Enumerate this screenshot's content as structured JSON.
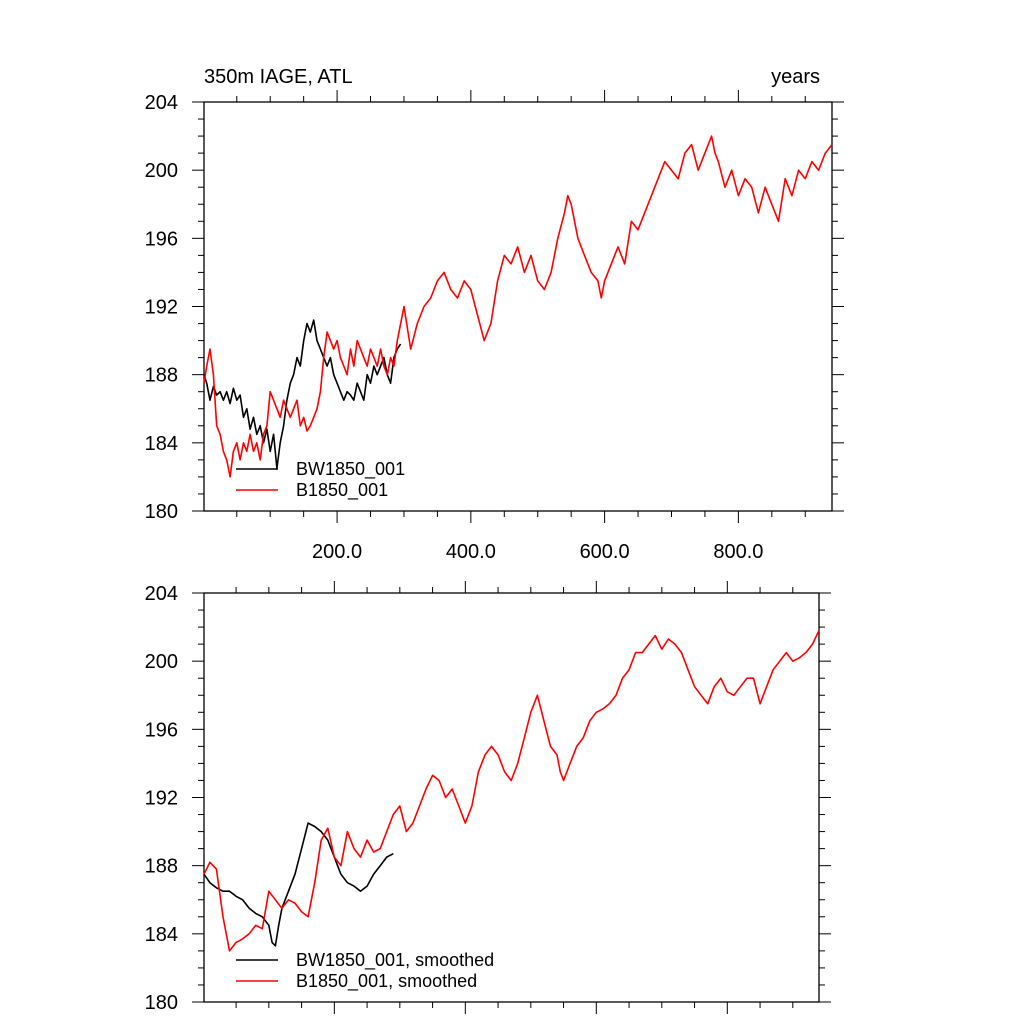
{
  "chart_data": [
    {
      "type": "line",
      "title_left": "350m IAGE, ATL",
      "title_right": "years",
      "xlim": [
        1,
        940
      ],
      "ylim": [
        180,
        204
      ],
      "y_ticks": [
        "180",
        "184",
        "188",
        "192",
        "196",
        "200",
        "204"
      ],
      "x_tick_values": [
        200,
        400,
        600,
        800
      ],
      "x_tick_labels": [
        "200.0",
        "400.0",
        "600.0",
        "800.0"
      ],
      "series": [
        {
          "name": "BW1850_001",
          "color": "#000000",
          "x": [
            1,
            5,
            10,
            15,
            20,
            25,
            30,
            35,
            40,
            45,
            50,
            55,
            60,
            65,
            70,
            75,
            80,
            85,
            90,
            95,
            100,
            105,
            110,
            115,
            120,
            125,
            130,
            135,
            140,
            145,
            150,
            155,
            160,
            165,
            170,
            175,
            180,
            185,
            190,
            195,
            200,
            205,
            210,
            215,
            220,
            225,
            230,
            235,
            240,
            245,
            250,
            255,
            260,
            265,
            270,
            275,
            280,
            285,
            290,
            295
          ],
          "y": [
            188.0,
            187.5,
            186.5,
            187.3,
            186.8,
            187.0,
            186.5,
            187.0,
            186.3,
            187.2,
            186.5,
            186.8,
            185.5,
            186.0,
            184.8,
            185.5,
            184.5,
            185.0,
            184.0,
            184.8,
            183.5,
            184.5,
            182.5,
            184.0,
            185.0,
            186.5,
            187.5,
            188.0,
            189.0,
            188.5,
            190.0,
            191.0,
            190.5,
            191.2,
            190.0,
            189.5,
            189.0,
            188.5,
            189.0,
            188.0,
            187.5,
            187.0,
            186.5,
            187.0,
            186.8,
            186.5,
            187.5,
            187.0,
            186.5,
            188.0,
            187.5,
            188.5,
            188.0,
            188.5,
            189.0,
            188.0,
            187.5,
            189.0,
            189.5,
            189.8
          ]
        },
        {
          "name": "B1850_001",
          "color": "#ff0000",
          "x": [
            1,
            5,
            10,
            15,
            20,
            25,
            30,
            35,
            40,
            45,
            50,
            55,
            60,
            65,
            70,
            75,
            80,
            85,
            90,
            95,
            100,
            105,
            110,
            115,
            120,
            125,
            130,
            135,
            140,
            145,
            150,
            155,
            160,
            165,
            170,
            175,
            180,
            185,
            190,
            195,
            200,
            205,
            210,
            215,
            220,
            225,
            230,
            235,
            240,
            245,
            250,
            255,
            260,
            265,
            270,
            275,
            280,
            285,
            290,
            300,
            310,
            320,
            330,
            340,
            350,
            360,
            370,
            380,
            390,
            400,
            410,
            420,
            430,
            440,
            450,
            460,
            470,
            480,
            490,
            500,
            510,
            520,
            530,
            540,
            545,
            550,
            560,
            570,
            580,
            590,
            595,
            600,
            610,
            620,
            630,
            640,
            650,
            660,
            670,
            680,
            690,
            700,
            710,
            720,
            730,
            740,
            750,
            760,
            765,
            770,
            780,
            790,
            800,
            810,
            820,
            830,
            840,
            850,
            860,
            870,
            880,
            890,
            900,
            910,
            920,
            930,
            940
          ],
          "y": [
            187.5,
            188.5,
            189.5,
            188.0,
            185.0,
            184.5,
            183.5,
            183.0,
            182.0,
            183.5,
            184.0,
            183.0,
            184.0,
            183.5,
            184.5,
            183.5,
            184.0,
            183.0,
            184.5,
            185.0,
            187.0,
            186.5,
            186.0,
            185.5,
            186.5,
            186.0,
            185.5,
            186.0,
            186.5,
            185.0,
            185.5,
            184.7,
            185.0,
            185.5,
            186.0,
            187.0,
            189.0,
            190.5,
            190.0,
            189.5,
            190.0,
            189.0,
            188.5,
            188.0,
            189.5,
            188.5,
            190.0,
            189.5,
            189.0,
            188.5,
            189.5,
            189.0,
            188.5,
            189.5,
            188.5,
            188.0,
            189.0,
            188.5,
            190.0,
            192.0,
            189.5,
            191.0,
            192.0,
            192.5,
            193.5,
            194.0,
            193.0,
            192.5,
            193.5,
            193.0,
            191.5,
            190.0,
            191.0,
            193.5,
            195.0,
            194.5,
            195.5,
            194.0,
            195.0,
            193.5,
            193.0,
            194.0,
            196.0,
            197.5,
            198.5,
            198.0,
            196.0,
            195.0,
            194.0,
            193.5,
            192.5,
            193.5,
            194.5,
            195.5,
            194.5,
            197.0,
            196.5,
            197.5,
            198.5,
            199.5,
            200.5,
            200.0,
            199.5,
            201.0,
            201.5,
            200.0,
            201.0,
            202.0,
            201.0,
            200.5,
            199.0,
            200.0,
            198.5,
            199.5,
            199.0,
            197.5,
            199.0,
            198.0,
            197.0,
            199.5,
            198.5,
            200.0,
            199.5,
            200.5,
            200.0,
            201.0,
            201.5
          ]
        }
      ]
    },
    {
      "type": "line",
      "xlim": [
        1,
        940
      ],
      "ylim": [
        180,
        204
      ],
      "y_ticks": [
        "180",
        "184",
        "188",
        "192",
        "196",
        "200",
        "204"
      ],
      "x_tick_values": [
        200,
        400,
        600,
        800
      ],
      "series": [
        {
          "name": "BW1850_001, smoothed",
          "color": "#000000",
          "x": [
            1,
            10,
            20,
            30,
            40,
            50,
            60,
            70,
            80,
            90,
            100,
            105,
            110,
            115,
            120,
            130,
            140,
            150,
            160,
            170,
            180,
            190,
            200,
            210,
            220,
            230,
            240,
            250,
            260,
            270,
            280,
            290
          ],
          "y": [
            187.5,
            187.0,
            186.7,
            186.5,
            186.5,
            186.2,
            186.0,
            185.5,
            185.2,
            185.0,
            184.5,
            183.5,
            183.3,
            184.5,
            185.5,
            186.5,
            187.5,
            189.0,
            190.5,
            190.3,
            190.0,
            189.5,
            188.5,
            187.5,
            187.0,
            186.8,
            186.5,
            186.8,
            187.5,
            188.0,
            188.5,
            188.7
          ]
        },
        {
          "name": "B1850_001, smoothed",
          "color": "#ff0000",
          "x": [
            1,
            10,
            20,
            30,
            40,
            50,
            60,
            70,
            80,
            90,
            100,
            110,
            120,
            130,
            140,
            150,
            160,
            170,
            180,
            190,
            200,
            210,
            220,
            230,
            240,
            250,
            260,
            270,
            280,
            290,
            300,
            310,
            320,
            330,
            340,
            350,
            360,
            370,
            380,
            390,
            400,
            410,
            420,
            430,
            440,
            450,
            460,
            470,
            480,
            490,
            500,
            510,
            520,
            530,
            540,
            545,
            550,
            560,
            570,
            580,
            590,
            600,
            610,
            620,
            630,
            640,
            650,
            660,
            670,
            680,
            690,
            700,
            710,
            720,
            730,
            740,
            750,
            760,
            770,
            780,
            790,
            800,
            810,
            820,
            830,
            840,
            850,
            860,
            870,
            880,
            890,
            900,
            910,
            920,
            930,
            940
          ],
          "y": [
            187.5,
            188.2,
            187.8,
            185.0,
            183.0,
            183.5,
            183.7,
            184.0,
            184.5,
            184.3,
            186.5,
            186.0,
            185.5,
            186.0,
            185.8,
            185.3,
            185.0,
            187.0,
            189.5,
            190.2,
            188.5,
            188.0,
            190.0,
            189.0,
            188.5,
            189.5,
            188.8,
            189.0,
            190.0,
            191.0,
            191.5,
            190.0,
            190.5,
            191.5,
            192.5,
            193.3,
            193.0,
            192.0,
            192.5,
            191.5,
            190.5,
            191.5,
            193.5,
            194.5,
            195.0,
            194.5,
            193.5,
            193.0,
            194.0,
            195.5,
            197.0,
            198.0,
            196.5,
            195.0,
            194.5,
            193.5,
            193.0,
            194.0,
            195.0,
            195.5,
            196.5,
            197.0,
            197.2,
            197.5,
            198.0,
            199.0,
            199.5,
            200.5,
            200.5,
            201.0,
            201.5,
            200.7,
            201.3,
            201.0,
            200.5,
            199.5,
            198.5,
            198.0,
            197.5,
            198.5,
            199.0,
            198.2,
            198.0,
            198.5,
            199.0,
            199.0,
            197.5,
            198.5,
            199.5,
            200.0,
            200.5,
            200.0,
            200.2,
            200.5,
            201.0,
            201.8
          ]
        }
      ]
    }
  ]
}
